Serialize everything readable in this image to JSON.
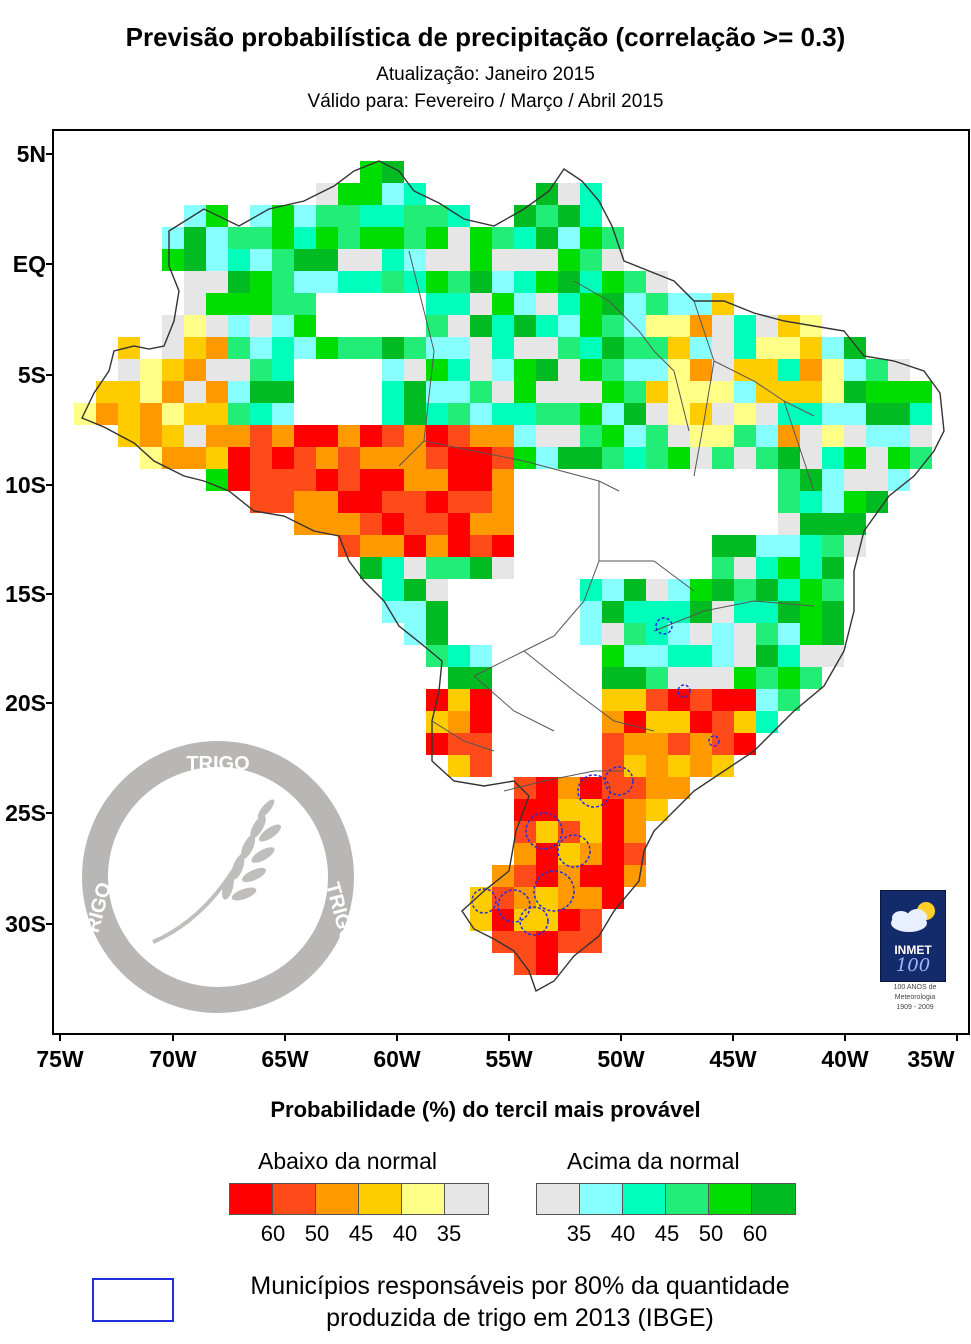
{
  "header": {
    "title": "Previsão probabilística de precipitação (correlação >= 0.3)",
    "update": "Atualização: Janeiro 2015",
    "valid": "Válido para: Fevereiro / Março / Abril 2015"
  },
  "axes": {
    "lat_labels": [
      "5N",
      "EQ",
      "5S",
      "10S",
      "15S",
      "20S",
      "25S",
      "30S"
    ],
    "lon_labels": [
      "75W",
      "70W",
      "65W",
      "60W",
      "55W",
      "50W",
      "45W",
      "40W",
      "35W"
    ]
  },
  "legend": {
    "heading": "Probabilidade (%) do tercil mais provável",
    "below_label": "Abaixo da normal",
    "above_label": "Acima da normal",
    "below_colors": [
      "#ff0000",
      "#ff4a1a",
      "#ff9900",
      "#ffcc00",
      "#ffff88",
      "#e6e6e6"
    ],
    "above_colors": [
      "#e6e6e6",
      "#88ffff",
      "#00ffbb",
      "#22ee77",
      "#00dd00",
      "#00bb22"
    ],
    "below_values": [
      "60",
      "50",
      "45",
      "40",
      "35"
    ],
    "above_values": [
      "35",
      "40",
      "45",
      "50",
      "60"
    ]
  },
  "municipios": {
    "line1": "Municípios responsáveis por 80% da quantidade",
    "line2": "produzida de trigo em 2013 (IBGE)",
    "outline_color": "#1f2fe0"
  },
  "watermark": {
    "top": "TRIGO",
    "left": "TRIGO",
    "right": "TRIGO"
  },
  "logo": {
    "name": "INMET",
    "hundred": "100",
    "line1": "100 ANOS de",
    "line2": "Meteorologia",
    "line3": "1909 - 2009"
  }
}
